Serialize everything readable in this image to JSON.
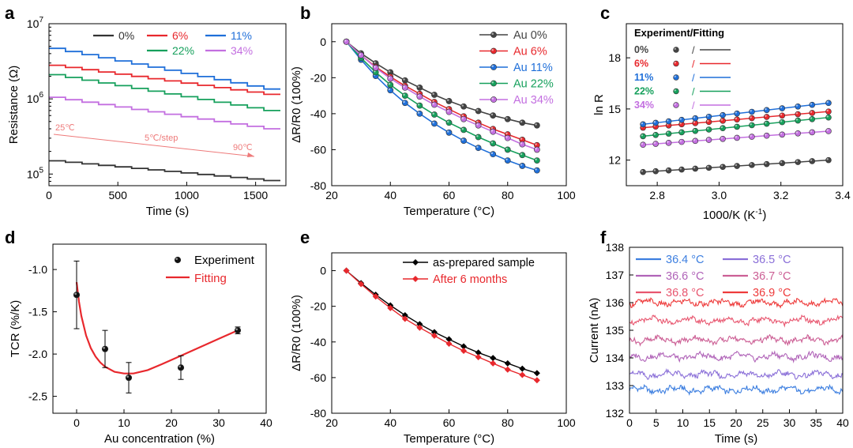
{
  "chart_data": [
    {
      "id": "a",
      "type": "line",
      "panel_label": "a",
      "xlabel": "Time (s)",
      "ylabel": "Resistance (Ω)",
      "yscale": "log",
      "xlim": [
        0,
        1720
      ],
      "ylim": [
        70000,
        10000000
      ],
      "xticks": [
        0,
        500,
        1000,
        1500
      ],
      "xtick_labels": [
        "0",
        "500",
        "1000",
        "1500"
      ],
      "yticks": [
        100000,
        1000000,
        10000000
      ],
      "ytick_labels": [
        {
          "base": "10",
          "exp": "5"
        },
        {
          "base": "10",
          "exp": "6"
        },
        {
          "base": "10",
          "exp": "7"
        }
      ],
      "series": [
        {
          "name": "0%",
          "color": "#333333",
          "start": 150000,
          "end": 82000
        },
        {
          "name": "6%",
          "color": "#e8282d",
          "start": 2800000,
          "end": 1150000
        },
        {
          "name": "11%",
          "color": "#1f6fd9",
          "start": 4700000,
          "end": 1350000
        },
        {
          "name": "22%",
          "color": "#16a05c",
          "start": 2100000,
          "end": 700000
        },
        {
          "name": "34%",
          "color": "#c36fe0",
          "start": 1050000,
          "end": 400000
        }
      ],
      "steps": 14,
      "step_duration_s": 120,
      "annotations": [
        {
          "text": "25℃",
          "color": "#ee7a7a"
        },
        {
          "text": "5℃/step",
          "color": "#ee7a7a"
        },
        {
          "text": "90℃",
          "color": "#ee7a7a"
        }
      ]
    },
    {
      "id": "b",
      "type": "line",
      "panel_label": "b",
      "xlabel": "Temperature (°C)",
      "ylabel": "ΔR/R0 (100%)",
      "xlim": [
        20,
        100
      ],
      "ylim": [
        -80,
        10
      ],
      "xticks": [
        20,
        40,
        60,
        80,
        100
      ],
      "yticks": [
        0,
        -20,
        -40,
        -60,
        -80
      ],
      "x": [
        25,
        30,
        35,
        40,
        45,
        50,
        55,
        60,
        65,
        70,
        75,
        80,
        85,
        90
      ],
      "series": [
        {
          "name": "Au 0%",
          "color": "#444444",
          "values": [
            0,
            -6.5,
            -12,
            -17,
            -21.5,
            -25.5,
            -29.5,
            -33,
            -36,
            -38.5,
            -41,
            -43,
            -45,
            -46.5
          ]
        },
        {
          "name": "Au 6%",
          "color": "#e8282d",
          "values": [
            0,
            -7.5,
            -14,
            -19.5,
            -24.5,
            -29,
            -33.5,
            -37.5,
            -41.5,
            -45,
            -48.5,
            -51.5,
            -54.5,
            -57.5
          ]
        },
        {
          "name": "Au 11%",
          "color": "#1f6fd9",
          "values": [
            0,
            -10,
            -19,
            -27,
            -34,
            -40,
            -45.5,
            -50.5,
            -55,
            -59,
            -62.5,
            -66,
            -69,
            -71.5
          ]
        },
        {
          "name": "Au 22%",
          "color": "#16a05c",
          "values": [
            0,
            -9,
            -17,
            -24,
            -30,
            -35.5,
            -40.5,
            -45,
            -49,
            -53,
            -56.5,
            -60,
            -63,
            -66
          ]
        },
        {
          "name": "Au 34%",
          "color": "#c36fe0",
          "values": [
            0,
            -7.5,
            -14.5,
            -20.5,
            -25.5,
            -30.5,
            -35,
            -39,
            -43,
            -46.5,
            -50,
            -53.5,
            -57,
            -60
          ]
        }
      ]
    },
    {
      "id": "c",
      "type": "scatter",
      "panel_label": "c",
      "xlabel": "1000/K (K",
      "xlabel_sup": "-1",
      "xlabel_end": ")",
      "ylabel": "ln R",
      "xlim": [
        2.7,
        3.4
      ],
      "ylim": [
        10.5,
        20
      ],
      "xticks": [
        2.8,
        3.0,
        3.2,
        3.4
      ],
      "xtick_labels": [
        "2.8",
        "3.0",
        "3.2",
        "3.4"
      ],
      "yticks": [
        12,
        15,
        18
      ],
      "legend_title": "Experiment/Fitting",
      "x": [
        2.754,
        2.795,
        2.837,
        2.879,
        2.923,
        2.967,
        3.012,
        3.058,
        3.106,
        3.154,
        3.204,
        3.255,
        3.301,
        3.354
      ],
      "series": [
        {
          "name": "0%",
          "color": "#444444",
          "start": 11.3,
          "end": 12.0
        },
        {
          "name": "6%",
          "color": "#e8282d",
          "start": 13.9,
          "end": 14.85
        },
        {
          "name": "11%",
          "color": "#1f6fd9",
          "start": 14.1,
          "end": 15.35
        },
        {
          "name": "22%",
          "color": "#16a05c",
          "start": 13.4,
          "end": 14.5
        },
        {
          "name": "34%",
          "color": "#c36fe0",
          "start": 12.9,
          "end": 13.7
        }
      ]
    },
    {
      "id": "d",
      "type": "scatter",
      "panel_label": "d",
      "xlabel": "Au concentration (%)",
      "ylabel": "TCR (%/K)",
      "xlim": [
        -5,
        40
      ],
      "ylim": [
        -2.7,
        -0.7
      ],
      "xticks": [
        0,
        10,
        20,
        30,
        40
      ],
      "yticks": [
        -1.0,
        -1.5,
        -2.0,
        -2.5
      ],
      "ytick_labels": [
        "-1.0",
        "-1.5",
        "-2.0",
        "-2.5"
      ],
      "experiment": {
        "name": "Experiment",
        "x": [
          0,
          6,
          11,
          22,
          34
        ],
        "y": [
          -1.3,
          -1.94,
          -2.28,
          -2.16,
          -1.72
        ],
        "err": [
          0.4,
          0.22,
          0.18,
          0.14,
          0.04
        ]
      },
      "fitting": {
        "name": "Fitting",
        "color": "#e8282d",
        "x": [
          0,
          0.5,
          1,
          2,
          3,
          4,
          5,
          6,
          8,
          10,
          12,
          15,
          18,
          22,
          26,
          30,
          34
        ],
        "y": [
          -1.15,
          -1.38,
          -1.55,
          -1.78,
          -1.93,
          -2.03,
          -2.1,
          -2.15,
          -2.21,
          -2.23,
          -2.23,
          -2.19,
          -2.12,
          -2.02,
          -1.92,
          -1.82,
          -1.72
        ]
      }
    },
    {
      "id": "e",
      "type": "line",
      "panel_label": "e",
      "xlabel": "Temperature (°C)",
      "ylabel": "ΔR/R0 (100%)",
      "xlim": [
        20,
        100
      ],
      "ylim": [
        -80,
        10
      ],
      "xticks": [
        20,
        40,
        60,
        80,
        100
      ],
      "yticks": [
        0,
        -20,
        -40,
        -60,
        -80
      ],
      "x": [
        25,
        30,
        35,
        40,
        45,
        50,
        55,
        60,
        65,
        70,
        75,
        80,
        85,
        90
      ],
      "series": [
        {
          "name": "as-prepared sample",
          "color": "#000000",
          "values": [
            0,
            -7,
            -13.5,
            -19.5,
            -25,
            -30,
            -34.5,
            -38.5,
            -42.5,
            -46,
            -49,
            -52,
            -55,
            -57.5
          ]
        },
        {
          "name": "After 6 months",
          "color": "#e8282d",
          "values": [
            0,
            -7.5,
            -14.5,
            -21,
            -27,
            -32,
            -36.5,
            -41,
            -45,
            -48.5,
            -52,
            -55.5,
            -58.5,
            -61.5
          ]
        }
      ]
    },
    {
      "id": "f",
      "type": "line",
      "panel_label": "f",
      "xlabel": "Time (s)",
      "ylabel": "Current (nA)",
      "xlim": [
        0,
        40
      ],
      "ylim": [
        132,
        138
      ],
      "xticks": [
        0,
        5,
        10,
        15,
        20,
        25,
        30,
        35,
        40
      ],
      "yticks": [
        132,
        133,
        134,
        135,
        136,
        137,
        138
      ],
      "series": [
        {
          "name": "36.4 °C",
          "color": "#3d7fe0",
          "mean": 132.85
        },
        {
          "name": "36.5 °C",
          "color": "#8a6fd8",
          "mean": 133.4
        },
        {
          "name": "36.6 °C",
          "color": "#b063b8",
          "mean": 134.05
        },
        {
          "name": "36.7 °C",
          "color": "#cc5f95",
          "mean": 134.65
        },
        {
          "name": "36.8 °C",
          "color": "#e8566f",
          "mean": 135.35
        },
        {
          "name": "36.9 °C",
          "color": "#ee3b3b",
          "mean": 136.0
        }
      ]
    }
  ]
}
